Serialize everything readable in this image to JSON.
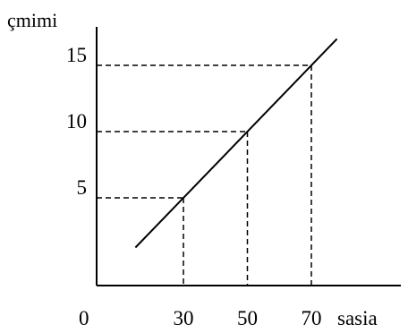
{
  "chart_data": {
    "type": "line",
    "title": "",
    "xlabel": "sasia",
    "ylabel": "çmimi",
    "origin_label": "0",
    "x_ticks": [
      "30",
      "50",
      "70"
    ],
    "y_ticks": [
      "5",
      "10",
      "15"
    ],
    "grid": false,
    "series": [
      {
        "points": [
          [
            30,
            5
          ],
          [
            50,
            10
          ],
          [
            70,
            15
          ]
        ],
        "line_extent_x": [
          15,
          78
        ]
      }
    ],
    "guides": [
      {
        "x": 30,
        "y": 5
      },
      {
        "x": 50,
        "y": 10
      },
      {
        "x": 70,
        "y": 15
      }
    ],
    "colors": {
      "line": "#000000",
      "axis": "#000000",
      "guide": "#000000",
      "background": "#ffffff"
    }
  }
}
